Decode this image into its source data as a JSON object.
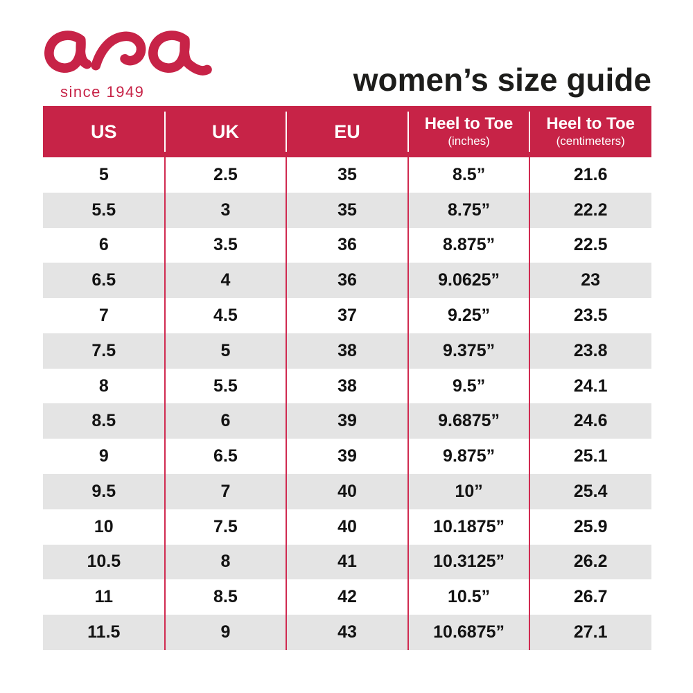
{
  "brand": {
    "logo_text": "ara",
    "registered_mark": "®",
    "tagline": "since 1949"
  },
  "header": {
    "title": "women’s size guide"
  },
  "chart_data": {
    "type": "table",
    "title": "women’s size guide",
    "columns": [
      {
        "label": "US",
        "sublabel": ""
      },
      {
        "label": "UK",
        "sublabel": ""
      },
      {
        "label": "EU",
        "sublabel": ""
      },
      {
        "label": "Heel to Toe",
        "sublabel": "(inches)"
      },
      {
        "label": "Heel to Toe",
        "sublabel": "(centimeters)"
      }
    ],
    "rows": [
      [
        "5",
        "2.5",
        "35",
        "8.5”",
        "21.6"
      ],
      [
        "5.5",
        "3",
        "35",
        "8.75”",
        "22.2"
      ],
      [
        "6",
        "3.5",
        "36",
        "8.875”",
        "22.5"
      ],
      [
        "6.5",
        "4",
        "36",
        "9.0625”",
        "23"
      ],
      [
        "7",
        "4.5",
        "37",
        "9.25”",
        "23.5"
      ],
      [
        "7.5",
        "5",
        "38",
        "9.375”",
        "23.8"
      ],
      [
        "8",
        "5.5",
        "38",
        "9.5”",
        "24.1"
      ],
      [
        "8.5",
        "6",
        "39",
        "9.6875”",
        "24.6"
      ],
      [
        "9",
        "6.5",
        "39",
        "9.875”",
        "25.1"
      ],
      [
        "9.5",
        "7",
        "40",
        "10”",
        "25.4"
      ],
      [
        "10",
        "7.5",
        "40",
        "10.1875”",
        "25.9"
      ],
      [
        "10.5",
        "8",
        "41",
        "10.3125”",
        "26.2"
      ],
      [
        "11",
        "8.5",
        "42",
        "10.5”",
        "26.7"
      ],
      [
        "11.5",
        "9",
        "43",
        "10.6875”",
        "27.1"
      ]
    ],
    "layout": {
      "striped_rows": true,
      "first_row_background": "white",
      "column_count": 5,
      "row_count": 14
    }
  },
  "colors": {
    "page_bg": "#FFFFFF",
    "brand": "#C72347",
    "header_bg": "#C72347",
    "header_text": "#FFFFFF",
    "row_bg": "#FFFFFF",
    "alt_row_bg": "#E4E4E4",
    "divider": "#D02A50",
    "cell_text": "#121212",
    "title_text": "#1D1D1B"
  }
}
